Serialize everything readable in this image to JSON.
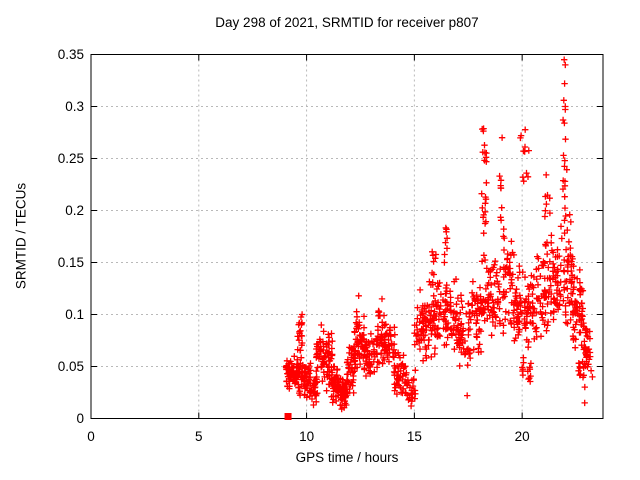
{
  "chart_data": {
    "type": "scatter",
    "title": "Day 298 of 2021, SRMTID for receiver p807",
    "xlabel": "GPS time / hours",
    "ylabel": "SRMTID / TECUs",
    "xlim": [
      0,
      23.75
    ],
    "ylim": [
      0,
      0.35
    ],
    "x_ticks": [
      0,
      5,
      10,
      15,
      20
    ],
    "x_tick_labels": [
      "0",
      "5",
      "10",
      "15",
      "20"
    ],
    "y_ticks": [
      0,
      0.05,
      0.1,
      0.15,
      0.2,
      0.25,
      0.3,
      0.35
    ],
    "y_tick_labels": [
      "0",
      "0.05",
      "0.1",
      "0.15",
      "0.2",
      "0.25",
      "0.3",
      "0.35"
    ],
    "grid": true,
    "grid_style": "dashed",
    "legend": "none",
    "marker": "plus",
    "marker_color": "#ff0000",
    "grid_color": "#b9b9b9",
    "frame_color": "#000000",
    "background_color": "#ffffff",
    "data_x_range": [
      9.05,
      23.3
    ],
    "start_marker": {
      "shape": "filled-square",
      "x": 9.14,
      "y": 0.0
    },
    "extreme_points": [
      [
        9.79,
        0.1
      ],
      [
        10.32,
        0.013
      ],
      [
        11.63,
        0.009
      ],
      [
        12.42,
        0.118
      ],
      [
        13.5,
        0.115
      ],
      [
        14.85,
        0.012
      ],
      [
        17.45,
        0.022
      ],
      [
        19.02,
        0.229
      ],
      [
        19.07,
        0.27
      ],
      [
        19.95,
        0.272
      ],
      [
        21.9,
        0.287
      ],
      [
        21.92,
        0.253
      ],
      [
        21.93,
        0.306
      ],
      [
        21.95,
        0.345
      ],
      [
        21.96,
        0.284
      ],
      [
        21.97,
        0.322
      ],
      [
        21.98,
        0.248
      ],
      [
        22.0,
        0.34
      ],
      [
        22.0,
        0.3
      ],
      [
        22.9,
        0.015
      ],
      [
        23.2,
        0.046
      ],
      [
        23.26,
        0.04
      ]
    ],
    "cluster_format": [
      "x_start",
      "x_end",
      "y_min",
      "y_max",
      "count",
      "uniform_flag"
    ],
    "clusters": [
      [
        9.05,
        9.6,
        0.024,
        0.062,
        60,
        0
      ],
      [
        9.55,
        9.8,
        0.048,
        0.098,
        22,
        1
      ],
      [
        9.6,
        10.2,
        0.018,
        0.058,
        58,
        0
      ],
      [
        10.15,
        10.5,
        0.012,
        0.048,
        30,
        0
      ],
      [
        10.45,
        10.8,
        0.028,
        0.091,
        38,
        0
      ],
      [
        10.8,
        11.2,
        0.022,
        0.088,
        42,
        0
      ],
      [
        11.15,
        11.55,
        0.012,
        0.052,
        45,
        0
      ],
      [
        11.5,
        11.9,
        0.008,
        0.04,
        50,
        0
      ],
      [
        11.85,
        12.25,
        0.022,
        0.072,
        42,
        0
      ],
      [
        12.2,
        12.7,
        0.042,
        0.108,
        48,
        0
      ],
      [
        12.65,
        13.3,
        0.038,
        0.088,
        55,
        0
      ],
      [
        13.3,
        13.65,
        0.048,
        0.108,
        34,
        0
      ],
      [
        13.6,
        14.1,
        0.045,
        0.096,
        40,
        0
      ],
      [
        14.05,
        14.65,
        0.018,
        0.065,
        45,
        0
      ],
      [
        14.6,
        15.05,
        0.012,
        0.05,
        28,
        0
      ],
      [
        15.0,
        15.55,
        0.052,
        0.126,
        45,
        0
      ],
      [
        15.5,
        16.0,
        0.05,
        0.138,
        45,
        0
      ],
      [
        15.8,
        16.05,
        0.138,
        0.165,
        7,
        1
      ],
      [
        16.0,
        16.55,
        0.058,
        0.145,
        46,
        0
      ],
      [
        16.38,
        16.52,
        0.148,
        0.19,
        8,
        1
      ],
      [
        16.5,
        17.1,
        0.055,
        0.14,
        46,
        0
      ],
      [
        17.05,
        17.6,
        0.045,
        0.122,
        40,
        0
      ],
      [
        17.55,
        18.1,
        0.052,
        0.148,
        45,
        0
      ],
      [
        18.1,
        18.4,
        0.14,
        0.285,
        26,
        1
      ],
      [
        18.1,
        18.45,
        0.075,
        0.14,
        18,
        0
      ],
      [
        18.4,
        19.0,
        0.06,
        0.158,
        48,
        0
      ],
      [
        18.95,
        19.15,
        0.16,
        0.24,
        7,
        1
      ],
      [
        19.1,
        19.65,
        0.068,
        0.19,
        46,
        0
      ],
      [
        19.6,
        20.15,
        0.055,
        0.152,
        44,
        0
      ],
      [
        19.9,
        20.35,
        0.215,
        0.285,
        10,
        1
      ],
      [
        19.95,
        20.45,
        0.03,
        0.06,
        15,
        0
      ],
      [
        20.1,
        20.7,
        0.058,
        0.155,
        46,
        0
      ],
      [
        20.65,
        21.35,
        0.068,
        0.175,
        50,
        0
      ],
      [
        21.0,
        21.3,
        0.18,
        0.235,
        8,
        1
      ],
      [
        21.3,
        21.85,
        0.078,
        0.185,
        46,
        0
      ],
      [
        21.88,
        22.1,
        0.185,
        0.3,
        12,
        1
      ],
      [
        21.9,
        22.4,
        0.085,
        0.205,
        50,
        0
      ],
      [
        22.35,
        22.85,
        0.052,
        0.148,
        55,
        0
      ],
      [
        22.55,
        23.0,
        0.028,
        0.06,
        15,
        0
      ],
      [
        22.85,
        23.2,
        0.04,
        0.09,
        30,
        0
      ]
    ],
    "rng_seed": 42
  }
}
